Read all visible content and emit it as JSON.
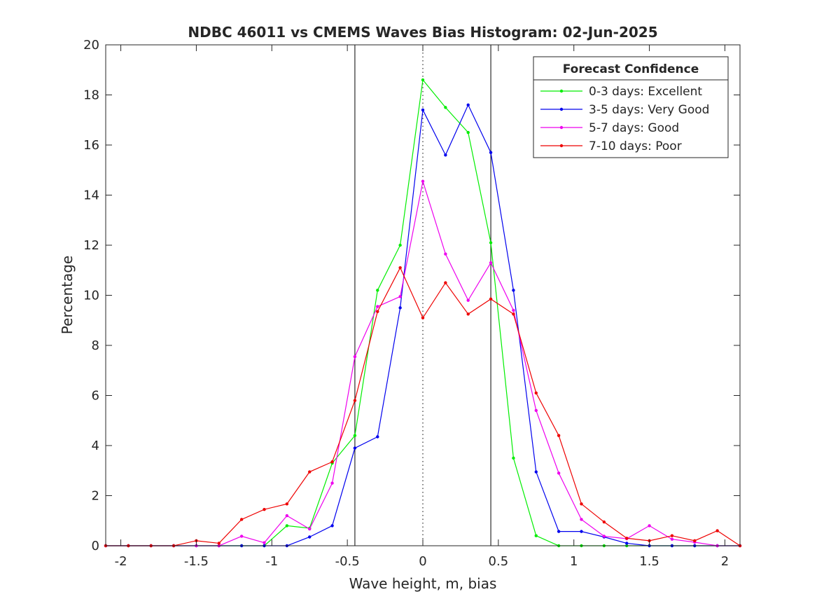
{
  "chart_data": {
    "type": "line",
    "title": "NDBC 46011 vs CMEMS Waves Bias Histogram: 02-Jun-2025",
    "xlabel": "Wave height, m, bias",
    "ylabel": "Percentage",
    "xlim": [
      -2.1,
      2.1
    ],
    "ylim": [
      0,
      20
    ],
    "xticks": [
      -2,
      -1.5,
      -1,
      -0.5,
      0,
      0.5,
      1,
      1.5,
      2
    ],
    "xtick_labels": [
      "-2",
      "-1.5",
      "-1",
      "-0.5",
      "0",
      "0.5",
      "1",
      "1.5",
      "2"
    ],
    "yticks": [
      0,
      2,
      4,
      6,
      8,
      10,
      12,
      14,
      16,
      18,
      20
    ],
    "ytick_labels": [
      "0",
      "2",
      "4",
      "6",
      "8",
      "10",
      "12",
      "14",
      "16",
      "18",
      "20"
    ],
    "grid": false,
    "vlines": [
      {
        "x": -0.45,
        "style": "solid"
      },
      {
        "x": 0,
        "style": "dotted"
      },
      {
        "x": 0.45,
        "style": "solid"
      }
    ],
    "legend": {
      "title": "Forecast Confidence",
      "placement": "top-right"
    },
    "x": [
      -2.1,
      -1.95,
      -1.8,
      -1.65,
      -1.5,
      -1.35,
      -1.2,
      -1.05,
      -0.9,
      -0.75,
      -0.6,
      -0.45,
      -0.3,
      -0.15,
      0,
      0.15,
      0.3,
      0.45,
      0.6,
      0.75,
      0.9,
      1.05,
      1.2,
      1.35,
      1.5,
      1.65,
      1.8,
      1.95,
      2.1
    ],
    "series": [
      {
        "name": "0-3 days: Excellent",
        "color": "#00ee00",
        "values": [
          0,
          0,
          0,
          0,
          0,
          0,
          0,
          0,
          0.8,
          0.7,
          3.3,
          4.4,
          10.2,
          12.0,
          18.6,
          17.5,
          16.5,
          12.1,
          3.5,
          0.4,
          0,
          0,
          0,
          0,
          0,
          0,
          0,
          0,
          0
        ]
      },
      {
        "name": "3-5 days: Very Good",
        "color": "#0000ee",
        "values": [
          0,
          0,
          0,
          0,
          0,
          0,
          0,
          0,
          0,
          0.35,
          0.8,
          3.9,
          4.35,
          9.5,
          17.4,
          15.6,
          17.6,
          15.7,
          10.2,
          2.95,
          0.57,
          0.57,
          0.35,
          0.1,
          0,
          0,
          0,
          0,
          0
        ]
      },
      {
        "name": "5-7 days: Good",
        "color": "#ee00ee",
        "values": [
          0,
          0,
          0,
          0,
          0,
          0,
          0.38,
          0.12,
          1.2,
          0.67,
          2.5,
          7.55,
          9.55,
          9.95,
          14.55,
          11.65,
          9.8,
          11.3,
          9.4,
          5.4,
          2.9,
          1.05,
          0.38,
          0.28,
          0.8,
          0.26,
          0.14,
          0,
          0
        ]
      },
      {
        "name": "7-10 days: Poor",
        "color": "#ee0000",
        "values": [
          0,
          0,
          0,
          0,
          0.2,
          0.1,
          1.05,
          1.45,
          1.67,
          2.95,
          3.35,
          5.8,
          9.35,
          11.1,
          9.1,
          10.5,
          9.25,
          9.85,
          9.25,
          6.1,
          4.4,
          1.67,
          0.95,
          0.3,
          0.2,
          0.4,
          0.2,
          0.6,
          0
        ]
      }
    ]
  }
}
